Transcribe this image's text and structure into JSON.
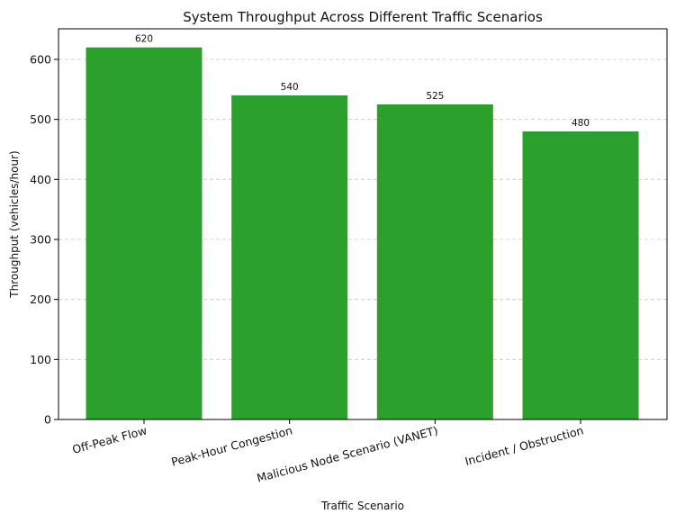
{
  "chart_data": {
    "type": "bar",
    "title": "System Throughput Across Different Traffic Scenarios",
    "xlabel": "Traffic Scenario",
    "ylabel": "Throughput (vehicles/hour)",
    "categories": [
      "Off-Peak Flow",
      "Peak-Hour Congestion",
      "Malicious Node Scenario (VANET)",
      "Incident / Obstruction"
    ],
    "values": [
      620,
      540,
      525,
      480
    ],
    "data_labels": [
      "620",
      "540",
      "525",
      "480"
    ],
    "ylim": [
      0,
      651
    ],
    "yticks": [
      0,
      100,
      200,
      300,
      400,
      500,
      600
    ],
    "grid": "y-dashed",
    "bar_color": "#2ca02c"
  }
}
